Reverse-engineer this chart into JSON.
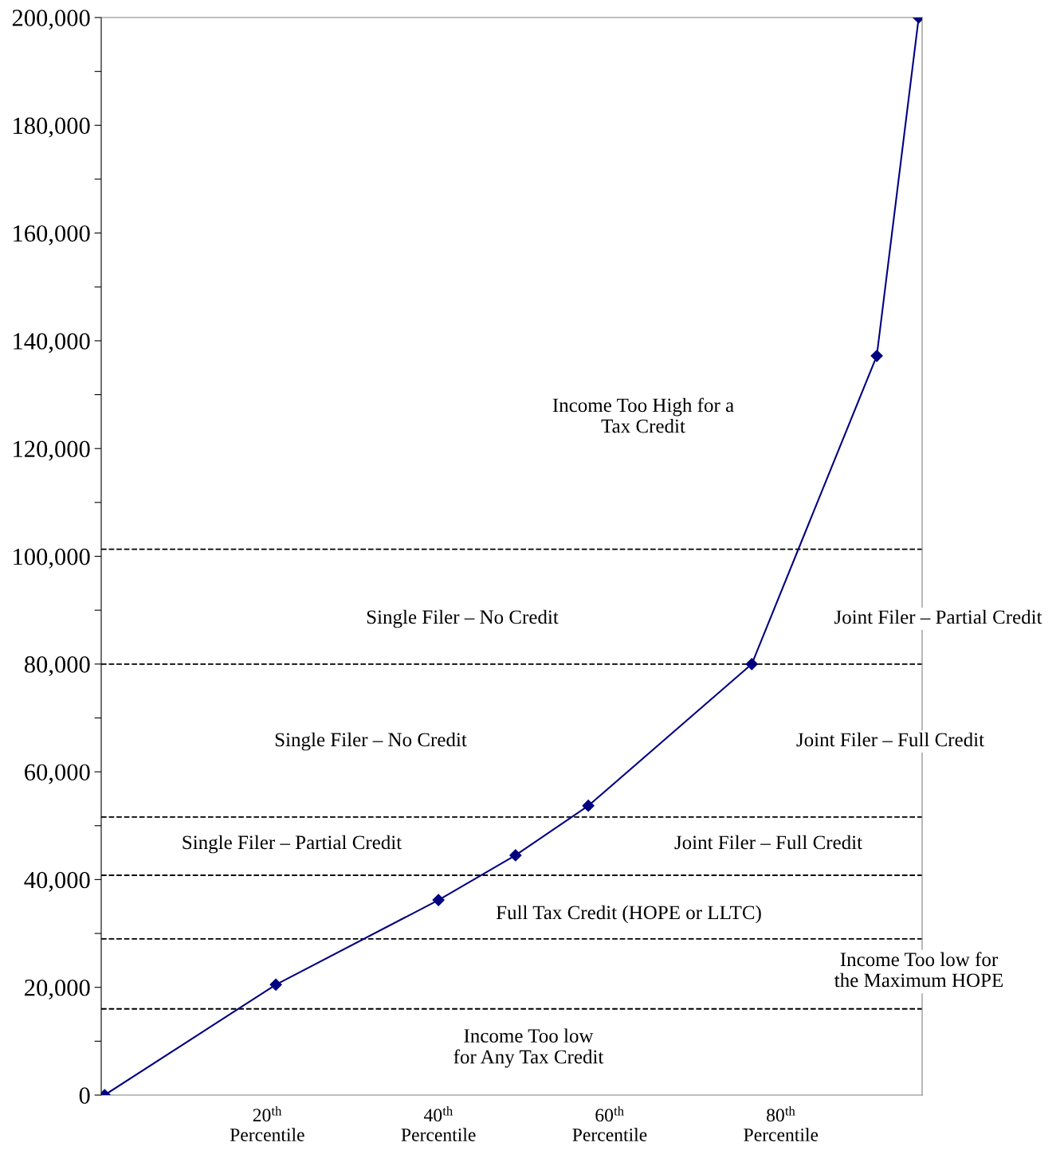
{
  "chart_data": {
    "type": "line",
    "x": [
      1,
      21,
      40,
      49,
      57.5,
      76.6,
      91.2,
      96.1
    ],
    "series": [
      {
        "color": "#000080",
        "values": [
          0,
          20500,
          36200,
          44500,
          53700,
          80000,
          137200,
          200000
        ]
      }
    ],
    "marker": "diamond",
    "line_style": "solid",
    "grid": false,
    "legend": false,
    "xlim": [
      0.6,
      96.5
    ],
    "xticks": [
      {
        "value": 20,
        "label": "20$^{th}$\nPercentile"
      },
      {
        "value": 40,
        "label": "40$^{th}$\nPercentile"
      },
      {
        "value": 60,
        "label": "60$^{th}$\nPercentile"
      },
      {
        "value": 80,
        "label": "80$^{th}$\nPercentile"
      }
    ],
    "ylim": [
      0,
      200000
    ],
    "yticks": [
      {
        "value": 0,
        "label": "0"
      },
      {
        "value": 10000,
        "label": null
      },
      {
        "value": 20000,
        "label": "20,000"
      },
      {
        "value": 30000,
        "label": null
      },
      {
        "value": 40000,
        "label": "40,000"
      },
      {
        "value": 50000,
        "label": null
      },
      {
        "value": 60000,
        "label": "60,000"
      },
      {
        "value": 70000,
        "label": null
      },
      {
        "value": 80000,
        "label": "80,000"
      },
      {
        "value": 90000,
        "label": null
      },
      {
        "value": 100000,
        "label": "100,000"
      },
      {
        "value": 110000,
        "label": null
      },
      {
        "value": 120000,
        "label": "120,000"
      },
      {
        "value": 130000,
        "label": null
      },
      {
        "value": 140000,
        "label": "140,000"
      },
      {
        "value": 150000,
        "label": null
      },
      {
        "value": 160000,
        "label": "160,000"
      },
      {
        "value": 170000,
        "label": null
      },
      {
        "value": 180000,
        "label": "180,000"
      },
      {
        "value": 190000,
        "label": null
      },
      {
        "value": 200000,
        "label": "200,000"
      }
    ],
    "ref_lines": [
      {
        "axis": "y",
        "value": 101300,
        "line_style": "dashed",
        "color": "#000000"
      },
      {
        "axis": "y",
        "value": 80000,
        "line_style": "dashed",
        "color": "#000000"
      },
      {
        "axis": "y",
        "value": 51600,
        "line_style": "dashed",
        "color": "#000000"
      },
      {
        "axis": "y",
        "value": 40800,
        "line_style": "dashed",
        "color": "#000000"
      },
      {
        "axis": "y",
        "value": 29000,
        "line_style": "dashed",
        "color": "#000000"
      },
      {
        "axis": "y",
        "value": 16000,
        "line_style": "dashed",
        "color": "#000000"
      }
    ],
    "annotations": [
      "Income Too High for a\nTax Credit",
      "Single Filer – No Credit",
      "Joint Filer – Partial Credit",
      "Single Filer – No Credit",
      "Joint Filer – Full Credit",
      "Single Filer – Partial Credit",
      "Joint Filer – Full Credit",
      "Full Tax Credit (HOPE or LLTC)",
      "Income Too low for\nthe Maximum HOPE",
      "Income Too low\nfor Any Tax Credit"
    ]
  }
}
